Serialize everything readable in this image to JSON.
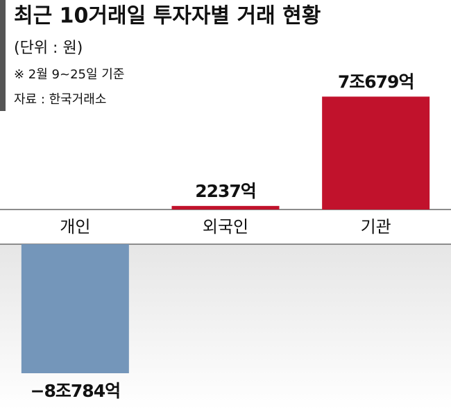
{
  "chart_data": {
    "type": "bar",
    "title": "최근 10거래일 투자자별 거래 현황",
    "subtitle": "(단위 : 원)",
    "notes": [
      "※ 2월 9~25일 기준",
      "자료 : 한국거래소"
    ],
    "categories": [
      "개인",
      "외국인",
      "기관"
    ],
    "values": [
      -80784,
      2237,
      70679
    ],
    "value_labels": [
      "−8조784억",
      "2237억",
      "7조679억"
    ],
    "colors": [
      "#7496ba",
      "#c1122c",
      "#c1122c"
    ]
  }
}
